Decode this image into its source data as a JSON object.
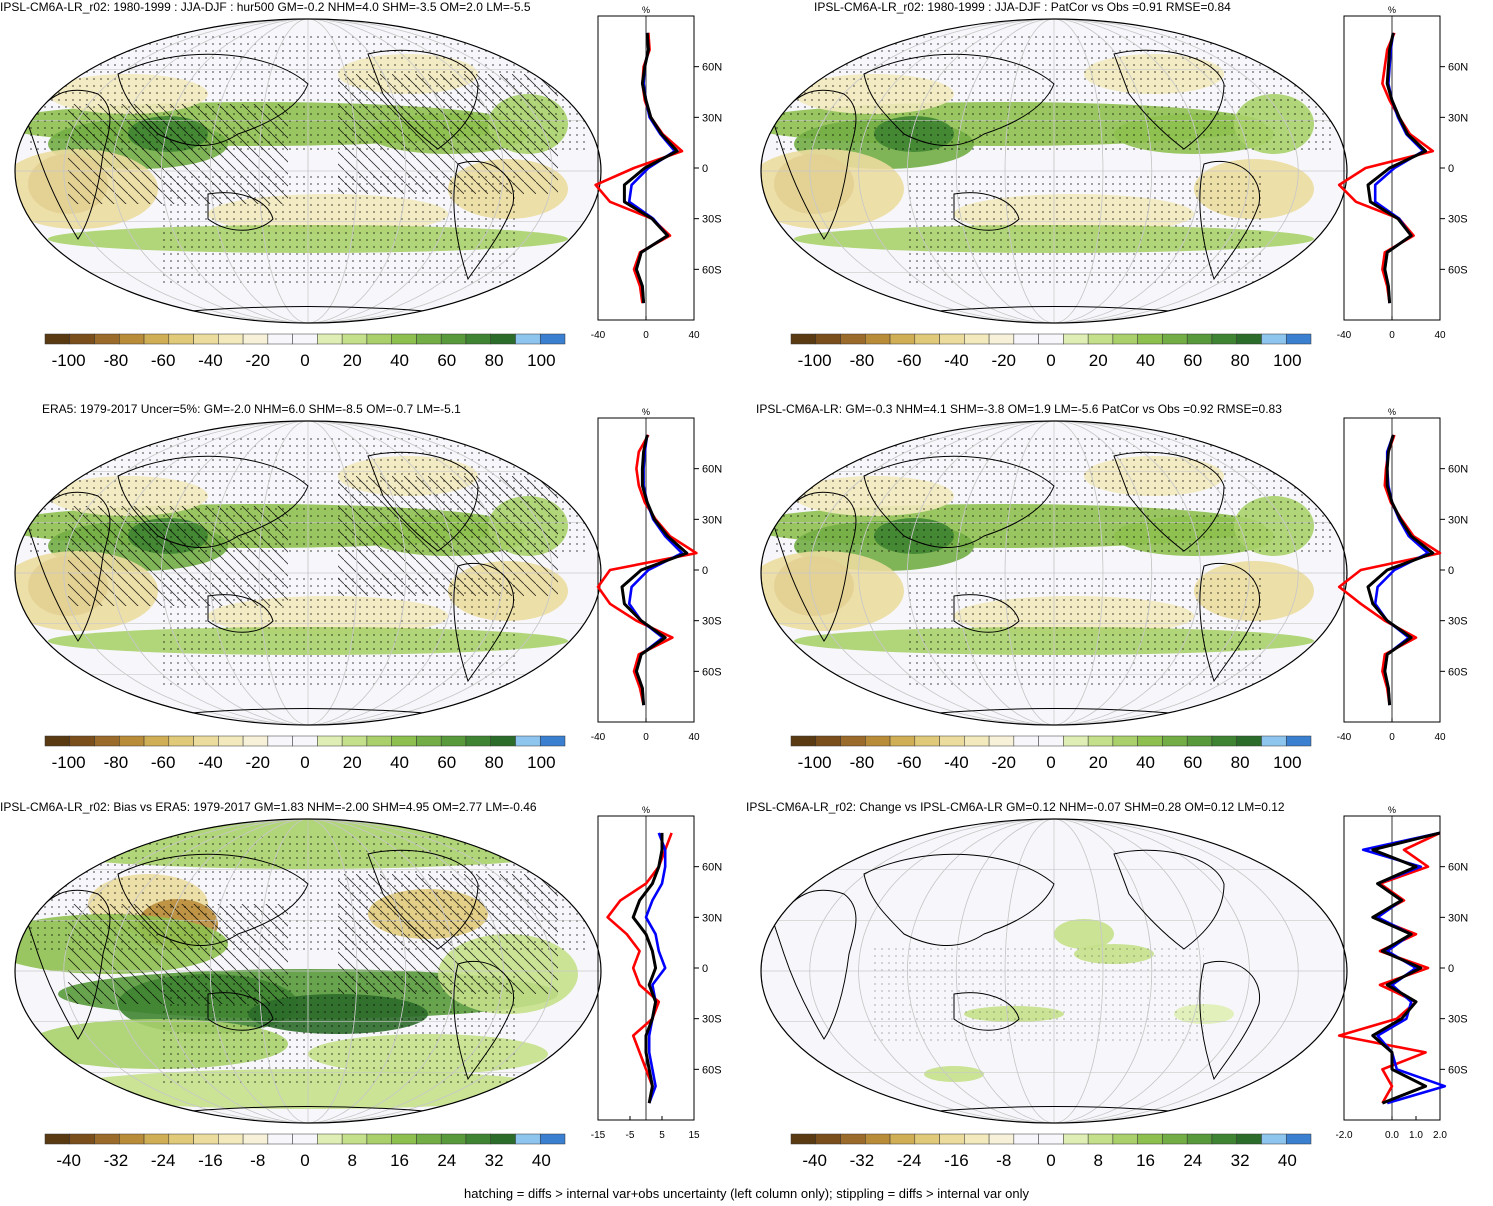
{
  "panels": [
    {
      "id": "a",
      "title": "IPSL-CM6A-LR_r02: 1980-1999 : JJA-DJF : hur500 GM=-0.2 NHM=4.0 SHM=-3.5 OM=2.0 LM=-5.5",
      "colorbar_ticks": [
        "-100",
        "-80",
        "-60",
        "-40",
        "-20",
        "0",
        "20",
        "40",
        "60",
        "80",
        "100"
      ],
      "profile_xticks": [
        "-40",
        "0",
        "40"
      ],
      "profile_unit": "%",
      "profile_lat_labels": [
        "60N",
        "30N",
        "0",
        "30S",
        "60S"
      ]
    },
    {
      "id": "b",
      "title": "IPSL-CM6A-LR_r02: 1980-1999 : JJA-DJF : PatCor vs Obs =0.91 RMSE=0.84",
      "colorbar_ticks": [
        "-100",
        "-80",
        "-60",
        "-40",
        "-20",
        "0",
        "20",
        "40",
        "60",
        "80",
        "100"
      ],
      "profile_xticks": [
        "-40",
        "0",
        "40"
      ],
      "profile_unit": "%",
      "profile_lat_labels": [
        "60N",
        "30N",
        "0",
        "30S",
        "60S"
      ]
    },
    {
      "id": "c",
      "title": "ERA5: 1979-2017 Uncer=5%: GM=-2.0 NHM=6.0 SHM=-8.5 OM=-0.7 LM=-5.1",
      "colorbar_ticks": [
        "-100",
        "-80",
        "-60",
        "-40",
        "-20",
        "0",
        "20",
        "40",
        "60",
        "80",
        "100"
      ],
      "profile_xticks": [
        "-40",
        "0",
        "40"
      ],
      "profile_unit": "%",
      "profile_lat_labels": [
        "60N",
        "30N",
        "0",
        "30S",
        "60S"
      ]
    },
    {
      "id": "d",
      "title": "IPSL-CM6A-LR: GM=-0.3 NHM=4.1 SHM=-3.8 OM=1.9 LM=-5.6 PatCor vs Obs =0.92 RMSE=0.83",
      "colorbar_ticks": [
        "-100",
        "-80",
        "-60",
        "-40",
        "-20",
        "0",
        "20",
        "40",
        "60",
        "80",
        "100"
      ],
      "profile_xticks": [
        "-40",
        "0",
        "40"
      ],
      "profile_unit": "%",
      "profile_lat_labels": [
        "60N",
        "30N",
        "0",
        "30S",
        "60S"
      ]
    },
    {
      "id": "e",
      "title": "IPSL-CM6A-LR_r02: Bias vs ERA5: 1979-2017 GM=1.83 NHM=-2.00 SHM=4.95 OM=2.77 LM=-0.46",
      "colorbar_ticks": [
        "-40",
        "-32",
        "-24",
        "-16",
        "-8",
        "0",
        "8",
        "16",
        "24",
        "32",
        "40"
      ],
      "profile_xticks": [
        "-15",
        "-5",
        "5",
        "15"
      ],
      "profile_unit": "%",
      "profile_lat_labels": [
        "60N",
        "30N",
        "0",
        "30S",
        "60S"
      ]
    },
    {
      "id": "f",
      "title": "IPSL-CM6A-LR_r02: Change vs IPSL-CM6A-LR GM=0.12 NHM=-0.07 SHM=0.28 OM=0.12 LM=0.12",
      "colorbar_ticks": [
        "-40",
        "-32",
        "-24",
        "-16",
        "-8",
        "0",
        "8",
        "16",
        "24",
        "32",
        "40"
      ],
      "profile_xticks": [
        "-2.0",
        "0.0",
        "1.0",
        "2.0"
      ],
      "profile_unit": "%",
      "profile_lat_labels": [
        "60N",
        "30N",
        "0",
        "30S",
        "60S"
      ]
    }
  ],
  "palette": [
    "#5a3a12",
    "#7a4f1c",
    "#9a6b2a",
    "#b98c3a",
    "#cfae55",
    "#e0ca7a",
    "#ebdc9e",
    "#f2e9bd",
    "#f6f1d8",
    "#f7f7fb",
    "#f7f7fb",
    "#dfeeb5",
    "#c4e08a",
    "#a9d06a",
    "#8ec050",
    "#72ad45",
    "#58993b",
    "#3f8432",
    "#2c6c2a",
    "#8ec5ef",
    "#3b7fd0"
  ],
  "footnote": "hatching = diffs > internal var+obs uncertainty (left column only); stippling = diffs > internal var only",
  "chart_data": [
    {
      "type": "heatmap",
      "panel": "a",
      "title": "IPSL-CM6A-LR_r02: 1980-1999 : JJA-DJF : hur500 GM=-0.2 NHM=4.0 SHM=-3.5 OM=2.0 LM=-5.5",
      "colorbar_range": [
        -100,
        100
      ],
      "zonal_profile": {
        "lat": [
          80,
          70,
          60,
          50,
          40,
          30,
          20,
          10,
          0,
          -10,
          -20,
          -30,
          -40,
          -50,
          -60,
          -70,
          -80
        ],
        "series": [
          {
            "color": "red",
            "values": [
              2,
              3,
              -2,
              -3,
              -1,
              4,
              14,
              30,
              -10,
              -42,
              -30,
              5,
              20,
              -5,
              -10,
              -5,
              -3
            ]
          },
          {
            "color": "blue",
            "values": [
              1,
              2,
              -1,
              -2,
              0,
              3,
              12,
              24,
              2,
              -12,
              -14,
              6,
              18,
              -4,
              -8,
              -3,
              -2
            ]
          },
          {
            "color": "black",
            "values": [
              1,
              2,
              -1,
              -3,
              0,
              4,
              13,
              26,
              -1,
              -18,
              -18,
              5,
              18,
              -4,
              -8,
              -3,
              -2
            ]
          }
        ]
      }
    },
    {
      "type": "heatmap",
      "panel": "b",
      "title": "IPSL-CM6A-LR_r02: 1980-1999 : JJA-DJF : PatCor vs Obs =0.91 RMSE=0.84",
      "colorbar_range": [
        -100,
        100
      ],
      "zonal_profile": {
        "lat": [
          80,
          70,
          60,
          50,
          40,
          30,
          20,
          10,
          0,
          -10,
          -20,
          -30,
          -40,
          -50,
          -60,
          -70,
          -80
        ],
        "series": [
          {
            "color": "red",
            "values": [
              2,
              -4,
              -6,
              -8,
              -2,
              6,
              15,
              34,
              -22,
              -44,
              -30,
              6,
              18,
              -6,
              -8,
              -4,
              -2
            ]
          },
          {
            "color": "blue",
            "values": [
              1,
              -1,
              -2,
              -3,
              0,
              5,
              12,
              26,
              2,
              -14,
              -14,
              6,
              16,
              -4,
              -6,
              -3,
              -2
            ]
          },
          {
            "color": "black",
            "values": [
              1,
              -2,
              -3,
              -4,
              0,
              6,
              13,
              28,
              -2,
              -20,
              -18,
              5,
              16,
              -4,
              -6,
              -3,
              -2
            ]
          }
        ]
      }
    },
    {
      "type": "heatmap",
      "panel": "c",
      "title": "ERA5: 1979-2017 Uncer=5%: GM=-2.0 NHM=6.0 SHM=-8.5 OM=-0.7 LM=-5.1",
      "colorbar_range": [
        -100,
        100
      ],
      "zonal_profile": {
        "lat": [
          80,
          70,
          60,
          50,
          40,
          30,
          20,
          10,
          0,
          -10,
          -20,
          -30,
          -40,
          -50,
          -60,
          -70,
          -80
        ],
        "series": [
          {
            "color": "red",
            "values": [
              2,
              -6,
              -8,
              -6,
              -1,
              8,
              20,
              42,
              -30,
              -40,
              -30,
              -8,
              22,
              -6,
              -10,
              -5,
              -2
            ]
          },
          {
            "color": "blue",
            "values": [
              1,
              -1,
              -2,
              -2,
              1,
              6,
              16,
              30,
              2,
              -12,
              -14,
              -4,
              14,
              -4,
              -8,
              -3,
              -2
            ]
          },
          {
            "color": "black",
            "values": [
              1,
              -2,
              -3,
              -3,
              1,
              7,
              18,
              34,
              -4,
              -20,
              -18,
              -4,
              16,
              -4,
              -8,
              -3,
              -2
            ]
          }
        ]
      }
    },
    {
      "type": "heatmap",
      "panel": "d",
      "title": "IPSL-CM6A-LR: GM=-0.3 NHM=4.1 SHM=-3.8 OM=1.9 LM=-5.6 PatCor vs Obs =0.92 RMSE=0.83",
      "colorbar_range": [
        -100,
        100
      ],
      "zonal_profile": {
        "lat": [
          80,
          70,
          60,
          50,
          40,
          30,
          20,
          10,
          0,
          -10,
          -20,
          -30,
          -40,
          -50,
          -60,
          -70,
          -80
        ],
        "series": [
          {
            "color": "red",
            "values": [
              2,
              -3,
              -5,
              -6,
              -1,
              8,
              18,
              40,
              -26,
              -44,
              -26,
              -6,
              20,
              -6,
              -8,
              -4,
              -2
            ]
          },
          {
            "color": "blue",
            "values": [
              1,
              -4,
              -4,
              -3,
              0,
              6,
              14,
              30,
              2,
              -12,
              -14,
              -4,
              14,
              -4,
              -6,
              -3,
              -2
            ]
          },
          {
            "color": "black",
            "values": [
              1,
              -3,
              -4,
              -4,
              0,
              7,
              16,
              34,
              -4,
              -20,
              -16,
              -4,
              16,
              -4,
              -6,
              -3,
              -2
            ]
          }
        ]
      }
    },
    {
      "type": "heatmap",
      "panel": "e",
      "title": "IPSL-CM6A-LR_r02: Bias vs ERA5: 1979-2017 GM=1.83 NHM=-2.00 SHM=4.95 OM=2.77 LM=-0.46",
      "colorbar_range": [
        -40,
        40
      ],
      "zonal_profile": {
        "lat": [
          80,
          70,
          60,
          50,
          40,
          30,
          20,
          10,
          0,
          -10,
          -20,
          -30,
          -40,
          -50,
          -60,
          -70,
          -80
        ],
        "series": [
          {
            "color": "red",
            "values": [
              8,
              6,
              4,
              0,
              -8,
              -12,
              -6,
              -2,
              -4,
              -2,
              4,
              2,
              -4,
              -2,
              0,
              2,
              1
            ]
          },
          {
            "color": "blue",
            "values": [
              4,
              6,
              6,
              5,
              2,
              0,
              3,
              4,
              6,
              2,
              3,
              2,
              1,
              1,
              2,
              3,
              1
            ]
          },
          {
            "color": "black",
            "values": [
              5,
              5,
              4,
              2,
              -2,
              -4,
              0,
              2,
              3,
              1,
              3,
              2,
              0,
              0,
              1,
              2,
              1
            ]
          }
        ]
      }
    },
    {
      "type": "heatmap",
      "panel": "f",
      "title": "IPSL-CM6A-LR_r02: Change vs IPSL-CM6A-LR GM=0.12 NHM=-0.07 SHM=0.28 OM=0.12 LM=0.12",
      "colorbar_range": [
        -40,
        40
      ],
      "zonal_profile": {
        "lat": [
          80,
          70,
          60,
          50,
          40,
          30,
          20,
          10,
          0,
          -10,
          -20,
          -30,
          -40,
          -50,
          -60,
          -70,
          -80
        ],
        "series": [
          {
            "color": "red",
            "values": [
              2.0,
              0.5,
              1.5,
              -0.5,
              0.5,
              -0.8,
              1.0,
              -0.5,
              1.5,
              -0.5,
              1.0,
              0.2,
              -2.2,
              1.4,
              -0.4,
              0.0,
              -0.4
            ]
          },
          {
            "color": "blue",
            "values": [
              2.0,
              -1.2,
              1.2,
              -0.6,
              0.4,
              -0.6,
              0.8,
              -0.2,
              1.0,
              0.0,
              0.8,
              0.6,
              -0.6,
              0.0,
              0.2,
              2.2,
              -0.2
            ]
          },
          {
            "color": "black",
            "values": [
              2.0,
              -0.8,
              1.0,
              -0.6,
              0.4,
              -0.8,
              0.8,
              -0.4,
              1.2,
              -0.2,
              1.0,
              0.4,
              -0.8,
              0.0,
              0.0,
              1.4,
              -0.4
            ]
          }
        ]
      }
    }
  ]
}
